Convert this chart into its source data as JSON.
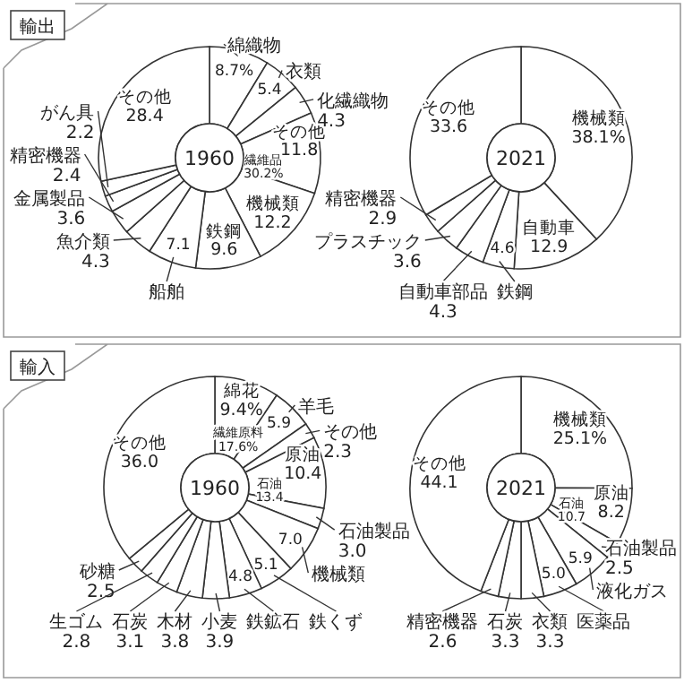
{
  "chart_data": [
    {
      "type": "donut",
      "title": "1960",
      "annotations": [
        "輸出",
        {
          "text": "繊維品30.2%",
          "x": "綿織物"
        }
      ],
      "categories": [
        "綿織物",
        "衣類",
        "化繊織物",
        "その他",
        "機械類",
        "鉄鋼",
        "船舶",
        "魚介類",
        "金属製品",
        "精密機器",
        "がん具",
        "その他"
      ],
      "values": [
        8.7,
        5.4,
        4.3,
        11.8,
        12.2,
        9.6,
        7.1,
        4.3,
        3.6,
        2.4,
        2.2,
        28.4
      ],
      "value_labels": [
        "8.7%",
        "5.4",
        "4.3",
        "11.8",
        "12.2",
        "9.6",
        "7.1",
        "4.3",
        "3.6",
        "2.4",
        "2.2",
        "28.4"
      ],
      "colors": [
        "#ffffff",
        "#ffffff",
        "#ffffff",
        "#ffffff",
        "#ffffff",
        "#ffffff",
        "#ffffff",
        "#ffffff",
        "#ffffff",
        "#ffffff",
        "#ffffff",
        "#ffffff"
      ]
    },
    {
      "type": "donut",
      "title": "2021",
      "categories": [
        "機械類",
        "自動車",
        "鉄鋼",
        "自動車部品",
        "プラスチック",
        "精密機器",
        "その他"
      ],
      "values": [
        38.1,
        12.9,
        4.6,
        4.3,
        3.6,
        2.9,
        33.6
      ],
      "value_labels": [
        "38.1%",
        "12.9",
        "4.6",
        "4.3",
        "3.6",
        "2.9",
        "33.6"
      ],
      "colors": [
        "#ffffff",
        "#ffffff",
        "#ffffff",
        "#ffffff",
        "#ffffff",
        "#ffffff",
        "#ffffff"
      ]
    },
    {
      "type": "donut",
      "title": "1960",
      "annotations": [
        "輸入",
        {
          "text": "繊維原料17.6%",
          "x": "綿花"
        },
        {
          "text": "石油13.4",
          "x": "原油"
        }
      ],
      "categories": [
        "綿花",
        "羊毛",
        "その他",
        "原油",
        "石油製品",
        "機械類",
        "鉄くず",
        "鉄鉱石",
        "小麦",
        "木材",
        "石炭",
        "生ゴム",
        "砂糖",
        "その他"
      ],
      "values": [
        9.4,
        5.9,
        2.3,
        10.4,
        3.0,
        7.0,
        5.1,
        4.8,
        3.9,
        3.8,
        3.1,
        2.8,
        2.5,
        36.0
      ],
      "value_labels": [
        "9.4%",
        "5.9",
        "2.3",
        "10.4",
        "3.0",
        "7.0",
        "5.1",
        "4.8",
        "3.9",
        "3.8",
        "3.1",
        "2.8",
        "2.5",
        "36.0"
      ],
      "colors": [
        "#ffffff",
        "#ffffff",
        "#ffffff",
        "#ffffff",
        "#ffffff",
        "#ffffff",
        "#ffffff",
        "#ffffff",
        "#ffffff",
        "#ffffff",
        "#ffffff",
        "#ffffff",
        "#ffffff",
        "#ffffff"
      ]
    },
    {
      "type": "donut",
      "title": "2021",
      "annotations": [
        {
          "text": "石油10.7",
          "x": "原油"
        }
      ],
      "categories": [
        "機械類",
        "原油",
        "石油製品",
        "液化ガス",
        "医薬品",
        "衣類",
        "石炭",
        "精密機器",
        "その他"
      ],
      "values": [
        25.1,
        8.2,
        2.5,
        5.9,
        5.0,
        3.3,
        3.3,
        2.6,
        44.1
      ],
      "value_labels": [
        "25.1%",
        "8.2",
        "2.5",
        "5.9",
        "5.0",
        "3.3",
        "3.3",
        "2.6",
        "44.1"
      ],
      "colors": [
        "#ffffff",
        "#ffffff",
        "#ffffff",
        "#ffffff",
        "#ffffff",
        "#ffffff",
        "#ffffff",
        "#ffffff",
        "#ffffff"
      ]
    }
  ]
}
